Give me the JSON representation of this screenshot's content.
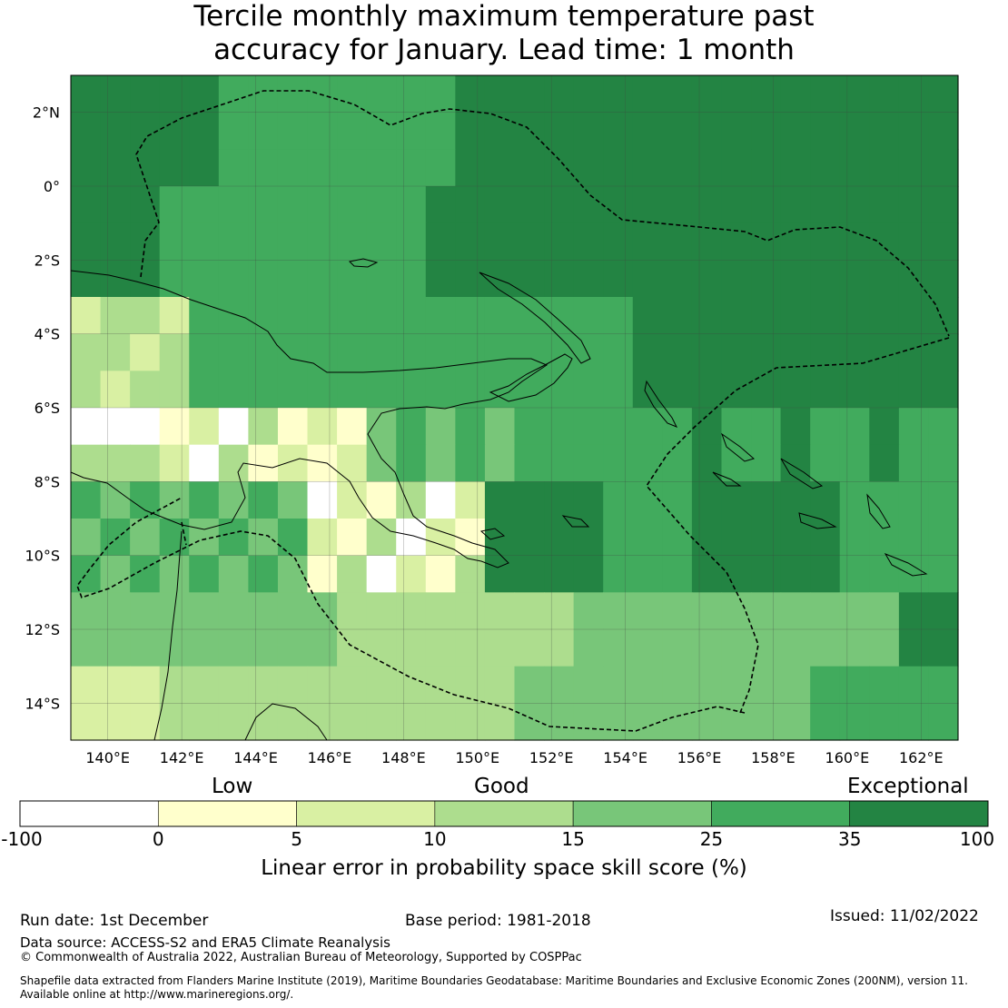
{
  "title": {
    "line1": "Tercile monthly maximum temperature past",
    "line2": "accuracy for January. Lead time: 1 month"
  },
  "map": {
    "lon_range": [
      139,
      163
    ],
    "lat_range": [
      -15,
      3
    ],
    "lon_ticks": [
      "140°E",
      "142°E",
      "144°E",
      "146°E",
      "148°E",
      "150°E",
      "152°E",
      "154°E",
      "156°E",
      "158°E",
      "160°E",
      "162°E"
    ],
    "lat_ticks": [
      "2°N",
      "0°",
      "2°S",
      "4°S",
      "6°S",
      "8°S",
      "10°S",
      "12°S",
      "14°S"
    ]
  },
  "legend": {
    "categories": [
      "Low",
      "Good",
      "Exceptional"
    ],
    "boundaries": [
      "-100",
      "0",
      "5",
      "10",
      "15",
      "25",
      "35",
      "100"
    ],
    "colors": [
      "#ffffff",
      "#ffffcc",
      "#d9f0a3",
      "#addd8e",
      "#78c679",
      "#41ab5d",
      "#238443"
    ],
    "title": "Linear error in probability space skill score (%)"
  },
  "footer": {
    "run_date": "Run date: 1st December",
    "base_period": "Base period: 1981-2018",
    "issued": "Issued: 11/02/2022",
    "data_source": "Data source: ACCESS-S2 and ERA5 Climate Reanalysis",
    "copyright": "© Commonwealth of Australia 2022, Australian Bureau of Meteorology, Supported by COSPPac",
    "shapefile_line1": "Shapefile data extracted from Flanders Marine Institute (2019), Maritime Boundaries Geodatabase: Maritime Boundaries and Exclusive Economic Zones (200NM), version 11.",
    "shapefile_line2": "Available online at http://www.marineregions.org/."
  }
}
